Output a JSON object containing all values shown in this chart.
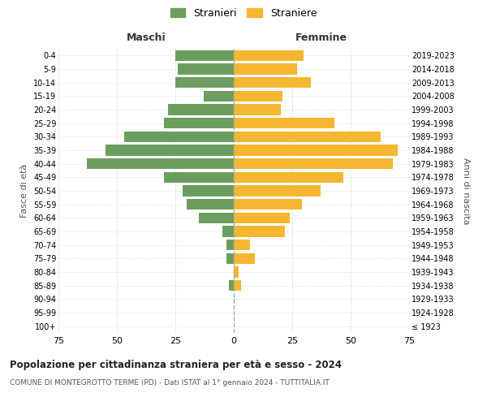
{
  "age_groups": [
    "100+",
    "95-99",
    "90-94",
    "85-89",
    "80-84",
    "75-79",
    "70-74",
    "65-69",
    "60-64",
    "55-59",
    "50-54",
    "45-49",
    "40-44",
    "35-39",
    "30-34",
    "25-29",
    "20-24",
    "15-19",
    "10-14",
    "5-9",
    "0-4"
  ],
  "birth_years": [
    "≤ 1923",
    "1924-1928",
    "1929-1933",
    "1934-1938",
    "1939-1943",
    "1944-1948",
    "1949-1953",
    "1954-1958",
    "1959-1963",
    "1964-1968",
    "1969-1973",
    "1974-1978",
    "1979-1983",
    "1984-1988",
    "1989-1993",
    "1994-1998",
    "1999-2003",
    "2004-2008",
    "2009-2013",
    "2014-2018",
    "2019-2023"
  ],
  "maschi": [
    0,
    0,
    0,
    2,
    0,
    3,
    3,
    5,
    15,
    20,
    22,
    30,
    63,
    55,
    47,
    30,
    28,
    13,
    25,
    24,
    25
  ],
  "femmine": [
    0,
    0,
    0,
    3,
    2,
    9,
    7,
    22,
    24,
    29,
    37,
    47,
    68,
    70,
    63,
    43,
    20,
    21,
    33,
    27,
    30
  ],
  "color_maschi": "#6b9e5e",
  "color_femmine": "#f5b731",
  "title": "Popolazione per cittadinanza straniera per età e sesso - 2024",
  "subtitle": "COMUNE DI MONTEGROTTO TERME (PD) - Dati ISTAT al 1° gennaio 2024 - TUTTITALIA.IT",
  "xlabel_left": "Maschi",
  "xlabel_right": "Femmine",
  "ylabel_left": "Fasce di età",
  "ylabel_right": "Anni di nascita",
  "legend_maschi": "Stranieri",
  "legend_femmine": "Straniere",
  "xlim": 75,
  "background_color": "#ffffff",
  "grid_color": "#cccccc"
}
